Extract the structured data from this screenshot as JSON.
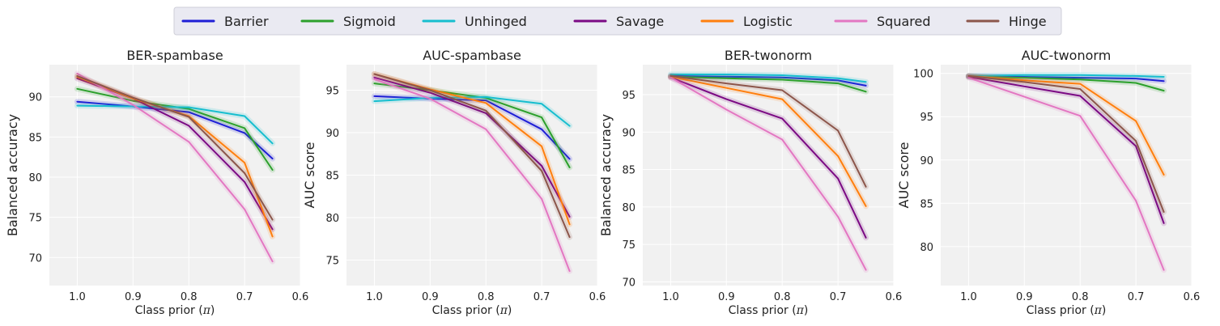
{
  "legend": [
    {
      "name": "Barrier",
      "color": "#1f1fd6"
    },
    {
      "name": "Sigmoid",
      "color": "#2ca02c"
    },
    {
      "name": "Unhinged",
      "color": "#17becf"
    },
    {
      "name": "Savage",
      "color": "#7b0a84"
    },
    {
      "name": "Logistic",
      "color": "#ff7f0e"
    },
    {
      "name": "Squared",
      "color": "#e377c2"
    },
    {
      "name": "Hinge",
      "color": "#8c564b"
    }
  ],
  "chart_data": [
    {
      "type": "line",
      "title": "BER-spambase",
      "xlabel": "Class prior (",
      "xlabel_symbol": "π",
      "xlabel_close": ")",
      "ylabel": "Balanced accuracy",
      "x": [
        1.0,
        0.9,
        0.8,
        0.7,
        0.65
      ],
      "xlim": [
        1.05,
        0.6
      ],
      "ylim": [
        66.5,
        94
      ],
      "xticks": [
        1.0,
        0.9,
        0.8,
        0.7,
        0.6
      ],
      "xtick_labels": [
        "1.0",
        "0.9",
        "0.8",
        "0.7",
        "0.6"
      ],
      "yticks": [
        70,
        75,
        80,
        85,
        90
      ],
      "grid": true,
      "series": [
        {
          "name": "Barrier",
          "values": [
            89.4,
            88.8,
            88.1,
            85.5,
            82.3
          ]
        },
        {
          "name": "Sigmoid",
          "values": [
            91.0,
            89.5,
            88.5,
            86.1,
            80.9
          ]
        },
        {
          "name": "Unhinged",
          "values": [
            88.9,
            88.8,
            88.7,
            87.6,
            84.2
          ]
        },
        {
          "name": "Savage",
          "values": [
            92.3,
            89.8,
            86.4,
            79.4,
            73.5
          ]
        },
        {
          "name": "Logistic",
          "values": [
            92.5,
            89.8,
            87.6,
            81.8,
            72.6
          ]
        },
        {
          "name": "Squared",
          "values": [
            92.9,
            89.0,
            84.4,
            76.0,
            69.5
          ]
        },
        {
          "name": "Hinge",
          "values": [
            92.6,
            89.9,
            87.5,
            80.5,
            74.7
          ]
        }
      ]
    },
    {
      "type": "line",
      "title": "AUC-spambase",
      "xlabel": "Class prior (",
      "xlabel_symbol": "π",
      "xlabel_close": ")",
      "ylabel": "AUC score",
      "x": [
        1.0,
        0.9,
        0.8,
        0.7,
        0.65
      ],
      "xlim": [
        1.05,
        0.6
      ],
      "ylim": [
        72,
        98
      ],
      "xticks": [
        1.0,
        0.9,
        0.8,
        0.7,
        0.6
      ],
      "xtick_labels": [
        "1.0",
        "0.9",
        "0.8",
        "0.7",
        "0.6"
      ],
      "yticks": [
        75,
        80,
        85,
        90,
        95
      ],
      "grid": true,
      "series": [
        {
          "name": "Barrier",
          "values": [
            94.3,
            94.0,
            93.8,
            90.4,
            86.9
          ]
        },
        {
          "name": "Sigmoid",
          "values": [
            95.8,
            95.0,
            94.1,
            91.8,
            85.9
          ]
        },
        {
          "name": "Unhinged",
          "values": [
            93.7,
            94.1,
            94.2,
            93.4,
            90.8
          ]
        },
        {
          "name": "Savage",
          "values": [
            96.5,
            94.7,
            92.3,
            86.1,
            80.1
          ]
        },
        {
          "name": "Logistic",
          "values": [
            96.9,
            95.1,
            93.5,
            88.4,
            79.2
          ]
        },
        {
          "name": "Squared",
          "values": [
            96.3,
            94.0,
            90.4,
            82.2,
            73.7
          ]
        },
        {
          "name": "Hinge",
          "values": [
            96.9,
            95.0,
            92.6,
            85.5,
            77.7
          ]
        }
      ]
    },
    {
      "type": "line",
      "title": "BER-twonorm",
      "xlabel": "Class prior (",
      "xlabel_symbol": "π",
      "xlabel_close": ")",
      "ylabel": "Balanced accuracy",
      "x": [
        1.0,
        0.9,
        0.8,
        0.7,
        0.65
      ],
      "xlim": [
        1.05,
        0.6
      ],
      "ylim": [
        69.5,
        99
      ],
      "xticks": [
        1.0,
        0.9,
        0.8,
        0.7,
        0.6
      ],
      "xtick_labels": [
        "1.0",
        "0.9",
        "0.8",
        "0.7",
        "0.6"
      ],
      "yticks": [
        70,
        75,
        80,
        85,
        90,
        95
      ],
      "grid": true,
      "series": [
        {
          "name": "Barrier",
          "values": [
            97.5,
            97.4,
            97.3,
            96.9,
            96.2
          ]
        },
        {
          "name": "Sigmoid",
          "values": [
            97.4,
            97.2,
            97.0,
            96.5,
            95.4
          ]
        },
        {
          "name": "Unhinged",
          "values": [
            97.7,
            97.7,
            97.6,
            97.2,
            96.7
          ]
        },
        {
          "name": "Savage",
          "values": [
            97.3,
            94.4,
            91.8,
            83.8,
            75.9
          ]
        },
        {
          "name": "Logistic",
          "values": [
            97.4,
            95.9,
            94.4,
            86.8,
            80.1
          ]
        },
        {
          "name": "Squared",
          "values": [
            97.3,
            93.0,
            89.0,
            78.7,
            71.6
          ]
        },
        {
          "name": "Hinge",
          "values": [
            97.5,
            96.5,
            95.6,
            90.2,
            82.7
          ]
        }
      ]
    },
    {
      "type": "line",
      "title": "AUC-twonorm",
      "xlabel": "Class prior (",
      "xlabel_symbol": "π",
      "xlabel_close": ")",
      "ylabel": "AUC score",
      "x": [
        1.0,
        0.9,
        0.8,
        0.7,
        0.65
      ],
      "xlim": [
        1.05,
        0.6
      ],
      "ylim": [
        75.5,
        101
      ],
      "xticks": [
        1.0,
        0.9,
        0.8,
        0.7,
        0.6
      ],
      "xtick_labels": [
        "1.0",
        "0.9",
        "0.8",
        "0.7",
        "0.6"
      ],
      "yticks": [
        80,
        85,
        90,
        95,
        100
      ],
      "grid": true,
      "series": [
        {
          "name": "Barrier",
          "values": [
            99.7,
            99.6,
            99.5,
            99.4,
            99.1
          ]
        },
        {
          "name": "Sigmoid",
          "values": [
            99.6,
            99.5,
            99.3,
            98.9,
            98.0
          ]
        },
        {
          "name": "Unhinged",
          "values": [
            99.7,
            99.8,
            99.8,
            99.7,
            99.6
          ]
        },
        {
          "name": "Savage",
          "values": [
            99.6,
            98.5,
            97.4,
            91.6,
            82.7
          ]
        },
        {
          "name": "Logistic",
          "values": [
            99.7,
            99.2,
            98.8,
            94.5,
            88.3
          ]
        },
        {
          "name": "Squared",
          "values": [
            99.5,
            97.3,
            95.1,
            85.3,
            77.3
          ]
        },
        {
          "name": "Hinge",
          "values": [
            99.7,
            99.0,
            98.2,
            92.2,
            84.0
          ]
        }
      ]
    }
  ]
}
